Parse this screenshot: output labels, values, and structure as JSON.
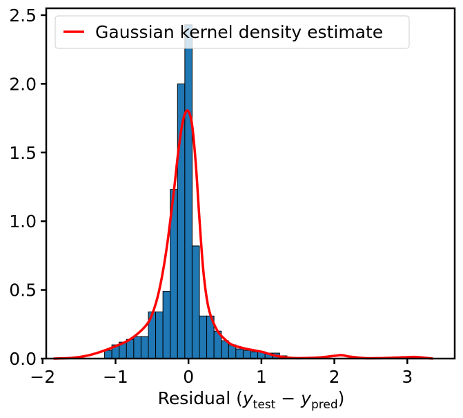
{
  "chart_data": {
    "type": "bar",
    "subtype": "histogram-with-kde",
    "title": "",
    "xlabel": {
      "prefix": "Residual (",
      "y1": "y",
      "sub1": "test",
      "minus": " − ",
      "y2": "y",
      "sub2": "pred",
      "suffix": ")"
    },
    "ylabel": "",
    "xlim": [
      -1.95,
      3.65
    ],
    "ylim": [
      0.0,
      2.55
    ],
    "xticks": [
      {
        "value": -2,
        "label": "−2"
      },
      {
        "value": -1,
        "label": "−1"
      },
      {
        "value": 0,
        "label": "0"
      },
      {
        "value": 1,
        "label": "1"
      },
      {
        "value": 2,
        "label": "2"
      },
      {
        "value": 3,
        "label": "3"
      }
    ],
    "yticks": [
      {
        "value": 0.0,
        "label": "0.0"
      },
      {
        "value": 0.5,
        "label": "0.5"
      },
      {
        "value": 1.0,
        "label": "1.0"
      },
      {
        "value": 1.5,
        "label": "1.5"
      },
      {
        "value": 2.0,
        "label": "2.0"
      },
      {
        "value": 2.5,
        "label": "2.5"
      }
    ],
    "grid": false,
    "legend": {
      "position": "top-left",
      "entries": [
        "Gaussian kernel density estimate"
      ]
    },
    "bar_color": "#1f77b4",
    "bar_edge_color": "#000000",
    "kde_color": "#ff0000",
    "bin_width": 0.1,
    "bins": [
      {
        "left": -1.15,
        "value": 0.06
      },
      {
        "left": -1.05,
        "value": 0.1
      },
      {
        "left": -0.95,
        "value": 0.12
      },
      {
        "left": -0.85,
        "value": 0.14
      },
      {
        "left": -0.75,
        "value": 0.16
      },
      {
        "left": -0.65,
        "value": 0.16
      },
      {
        "left": -0.55,
        "value": 0.34
      },
      {
        "left": -0.45,
        "value": 0.34
      },
      {
        "left": -0.35,
        "value": 0.49
      },
      {
        "left": -0.25,
        "value": 1.23
      },
      {
        "left": -0.15,
        "value": 2.0
      },
      {
        "left": -0.05,
        "value": 2.43
      },
      {
        "left": 0.05,
        "value": 0.82
      },
      {
        "left": 0.15,
        "value": 0.31
      },
      {
        "left": 0.25,
        "value": 0.31
      },
      {
        "left": 0.35,
        "value": 0.2
      },
      {
        "left": 0.45,
        "value": 0.13
      },
      {
        "left": 0.55,
        "value": 0.1
      },
      {
        "left": 0.65,
        "value": 0.07
      },
      {
        "left": 0.75,
        "value": 0.06
      },
      {
        "left": 0.85,
        "value": 0.05
      },
      {
        "left": 0.95,
        "value": 0.05
      },
      {
        "left": 1.05,
        "value": 0.04
      },
      {
        "left": 1.15,
        "value": 0.04
      },
      {
        "left": 1.25,
        "value": 0.02
      }
    ],
    "kde": {
      "x": [
        -1.85,
        -1.6,
        -1.4,
        -1.2,
        -1.0,
        -0.8,
        -0.6,
        -0.5,
        -0.4,
        -0.3,
        -0.2,
        -0.15,
        -0.1,
        -0.05,
        0.0,
        0.05,
        0.1,
        0.15,
        0.2,
        0.25,
        0.3,
        0.4,
        0.5,
        0.6,
        0.8,
        1.0,
        1.2,
        1.4,
        1.6,
        1.8,
        2.0,
        2.1,
        2.2,
        2.4,
        2.6,
        2.8,
        3.0,
        3.1,
        3.2,
        3.35
      ],
      "y": [
        0.0,
        0.005,
        0.02,
        0.05,
        0.09,
        0.14,
        0.23,
        0.32,
        0.5,
        0.8,
        1.22,
        1.46,
        1.66,
        1.78,
        1.8,
        1.7,
        1.42,
        1.02,
        0.66,
        0.44,
        0.32,
        0.2,
        0.14,
        0.1,
        0.07,
        0.05,
        0.02,
        0.005,
        0.004,
        0.008,
        0.02,
        0.025,
        0.015,
        0.004,
        0.003,
        0.006,
        0.01,
        0.012,
        0.008,
        0.0
      ]
    }
  }
}
